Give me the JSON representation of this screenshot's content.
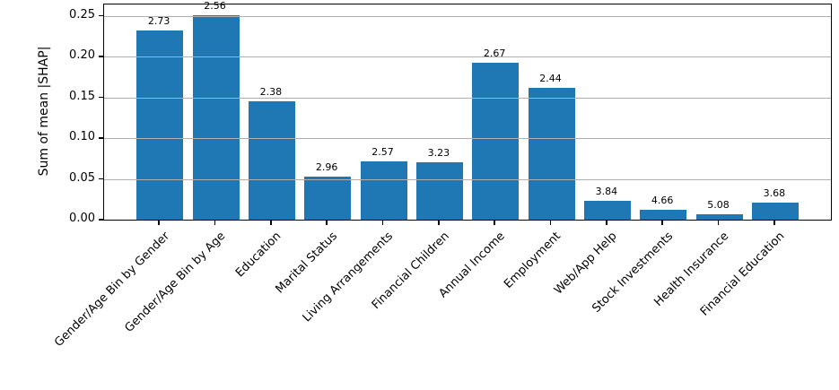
{
  "chart_data": {
    "type": "bar",
    "title": "",
    "xlabel": "",
    "ylabel": "Sum of mean |SHAP|",
    "categories": [
      "Gender/Age Bin by Gender",
      "Gender/Age Bin by Age",
      "Education",
      "Marital Status",
      "Living Arrangements",
      "Financial Children",
      "Annual Income",
      "Employment",
      "Web/App Help",
      "Stock Investments",
      "Health Insurance",
      "Financial Education"
    ],
    "values": [
      0.232,
      0.251,
      0.145,
      0.053,
      0.071,
      0.07,
      0.193,
      0.162,
      0.023,
      0.012,
      0.007,
      0.021
    ],
    "bar_labels": [
      "2.73",
      "2.56",
      "2.38",
      "2.96",
      "2.57",
      "3.23",
      "2.67",
      "2.44",
      "3.84",
      "4.66",
      "5.08",
      "3.68"
    ],
    "yticks": {
      "labels": [
        "0.00",
        "0.05",
        "0.10",
        "0.15",
        "0.20",
        "0.25"
      ],
      "values": [
        0,
        0.05,
        0.1,
        0.15,
        0.2,
        0.25
      ]
    },
    "ylim": [
      0,
      0.264
    ],
    "grid": "horizontal",
    "grid_above_bars": true,
    "legend": null,
    "colors": {
      "bar": "#1f77b4",
      "grid": "#b0b0b0",
      "axis": "#000000",
      "text": "#000000",
      "background": "#ffffff"
    }
  }
}
